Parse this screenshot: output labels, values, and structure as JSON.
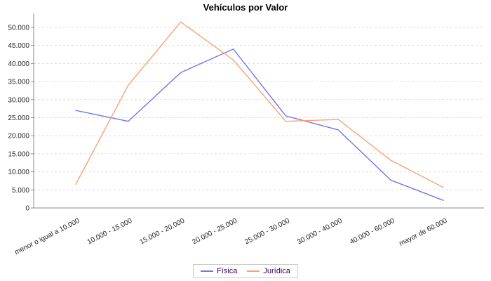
{
  "header": {
    "title": "Vehículos por Valor"
  },
  "chart_data": {
    "type": "line",
    "title": "Vehículos por Valor",
    "categories": [
      "menor o igual a 10.000",
      "10.000 - 15.000",
      "15.000 - 20.000",
      "20.000 - 25.000",
      "25.000 - 30.000",
      "30.000 - 40.000",
      "40.000 - 60.000",
      "mayor de 60.000"
    ],
    "series": [
      {
        "name": "Física",
        "color": "#7477e6",
        "values": [
          27000,
          24000,
          37500,
          44000,
          25500,
          21600,
          7700,
          2100
        ]
      },
      {
        "name": "Jurídica",
        "color": "#f9a273",
        "values": [
          6500,
          34000,
          51500,
          41000,
          24000,
          24500,
          13200,
          5700
        ]
      }
    ],
    "xlabel": "",
    "ylabel": "",
    "ylim": [
      0,
      55000
    ],
    "grid": true,
    "legend_position": "bottom",
    "y_ticks": [
      {
        "value": 0,
        "label": "0"
      },
      {
        "value": 5000,
        "label": "5.000"
      },
      {
        "value": 10000,
        "label": "10.000"
      },
      {
        "value": 15000,
        "label": "15.000"
      },
      {
        "value": 20000,
        "label": "20.000"
      },
      {
        "value": 25000,
        "label": "25.000"
      },
      {
        "value": 30000,
        "label": "30.000"
      },
      {
        "value": 35000,
        "label": "35.000"
      },
      {
        "value": 40000,
        "label": "40.000"
      },
      {
        "value": 45000,
        "label": "45.000"
      },
      {
        "value": 50000,
        "label": "50.000"
      }
    ],
    "colors": {
      "grid": "#dcdcdc",
      "axis": "#8c8c8c",
      "tick_label": "#222222",
      "title": "#000000",
      "legend_text": "#330066",
      "legend_border": "#cccccc",
      "background": "#ffffff"
    }
  }
}
